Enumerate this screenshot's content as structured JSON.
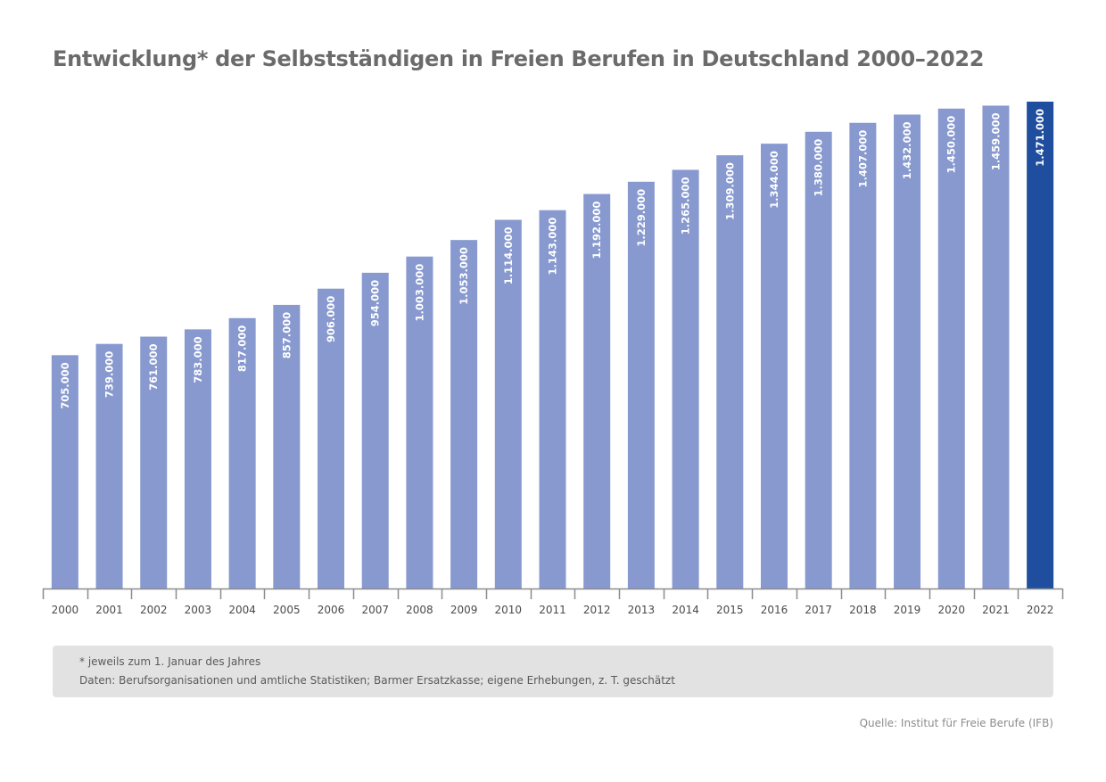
{
  "title": "Entwicklung* der Selbstständigen in Freien Berufen in Deutschland 2000–2022",
  "notes": {
    "line1": "* jeweils zum 1. Januar des Jahres",
    "line2": "Daten: Berufsorganisationen und amtliche Statistiken; Barmer Ersatzkasse; eigene Erhebungen, z. T. geschätzt"
  },
  "source": "Quelle: Institut für Freie Berufe (IFB)",
  "colors": {
    "bar": "#8799cf",
    "bar_highlight": "#1f4e9e",
    "axis": "#8c8c8c",
    "tick_label": "#4a4a4a",
    "data_label": "#ffffff"
  },
  "chart_data": {
    "type": "bar",
    "title": "Entwicklung* der Selbstständigen in Freien Berufen in Deutschland 2000–2022",
    "xlabel": "",
    "ylabel": "",
    "ylim": [
      0,
      1471000
    ],
    "grid": false,
    "categories": [
      "2000",
      "2001",
      "2002",
      "2003",
      "2004",
      "2005",
      "2006",
      "2007",
      "2008",
      "2009",
      "2010",
      "2011",
      "2012",
      "2013",
      "2014",
      "2015",
      "2016",
      "2017",
      "2018",
      "2019",
      "2020",
      "2021",
      "2022"
    ],
    "values": [
      705000,
      739000,
      761000,
      783000,
      817000,
      857000,
      906000,
      954000,
      1003000,
      1053000,
      1114000,
      1143000,
      1192000,
      1229000,
      1265000,
      1309000,
      1344000,
      1380000,
      1407000,
      1432000,
      1450000,
      1459000,
      1471000
    ],
    "labels": [
      "705.000",
      "739.000",
      "761.000",
      "783.000",
      "817.000",
      "857.000",
      "906.000",
      "954.000",
      "1.003.000",
      "1.053.000",
      "1.114.000",
      "1.143.000",
      "1.192.000",
      "1.229.000",
      "1.265.000",
      "1.309.000",
      "1.344.000",
      "1.380.000",
      "1.407.000",
      "1.432.000",
      "1.450.000",
      "1.459.000",
      "1.471.000"
    ],
    "highlight": "2022"
  }
}
